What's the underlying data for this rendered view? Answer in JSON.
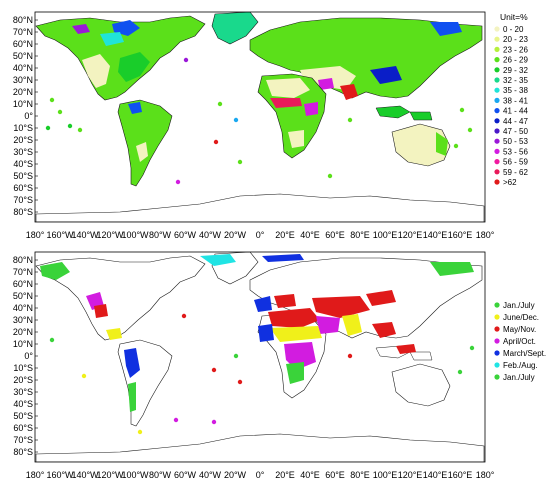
{
  "panels": {
    "top": {
      "lat_labels": [
        "80°N",
        "70°N",
        "60°N",
        "50°N",
        "40°N",
        "30°N",
        "20°N",
        "10°N",
        "0°",
        "10°S",
        "20°S",
        "30°S",
        "40°S",
        "50°S",
        "60°S",
        "70°S",
        "80°S"
      ],
      "legend_title": "Unit=%",
      "legend": [
        {
          "label": "0 - 20",
          "color": "#f3f3c0"
        },
        {
          "label": "20 - 23",
          "color": "#e8f58a"
        },
        {
          "label": "23 - 26",
          "color": "#b6f03c"
        },
        {
          "label": "26 - 29",
          "color": "#5be01a"
        },
        {
          "label": "29 - 32",
          "color": "#19cd2a"
        },
        {
          "label": "32 - 35",
          "color": "#19d98c"
        },
        {
          "label": "35 - 38",
          "color": "#20e4d8"
        },
        {
          "label": "38 - 41",
          "color": "#1aa8f0"
        },
        {
          "label": "41 - 44",
          "color": "#1050f0"
        },
        {
          "label": "44 - 47",
          "color": "#0a1ec8"
        },
        {
          "label": "47 - 50",
          "color": "#4a18c8"
        },
        {
          "label": "50 - 53",
          "color": "#9a18d8"
        },
        {
          "label": "53 - 56",
          "color": "#d21ce0"
        },
        {
          "label": "56 - 59",
          "color": "#f01aa0"
        },
        {
          "label": "59 - 62",
          "color": "#e81a5a"
        },
        {
          "label": ">62",
          "color": "#e01a1a"
        }
      ]
    },
    "bottom": {
      "lat_labels": [
        "80°N",
        "70°N",
        "60°N",
        "50°N",
        "40°N",
        "30°N",
        "20°N",
        "10°N",
        "0°",
        "10°S",
        "20°S",
        "30°S",
        "40°S",
        "50°S",
        "60°S",
        "70°S",
        "80°S"
      ],
      "legend": [
        {
          "label": "Jan./July",
          "color": "#3ad33a"
        },
        {
          "label": "June/Dec.",
          "color": "#f0f01a"
        },
        {
          "label": "May/Nov.",
          "color": "#e01a1a"
        },
        {
          "label": "April/Oct.",
          "color": "#d21ce0"
        },
        {
          "label": "March/Sept.",
          "color": "#1030e0"
        },
        {
          "label": "Feb./Aug.",
          "color": "#20e4e4"
        },
        {
          "label": "Jan./July",
          "color": "#3ad33a"
        }
      ]
    }
  },
  "lon_labels": [
    "180°",
    "160°W",
    "140°W",
    "120°W",
    "100°W",
    "80°W",
    "60°W",
    "40°W",
    "20°W",
    "0°",
    "20°E",
    "40°E",
    "60°E",
    "80°E",
    "100°E",
    "120°E",
    "140°E",
    "160°E",
    "180°"
  ]
}
